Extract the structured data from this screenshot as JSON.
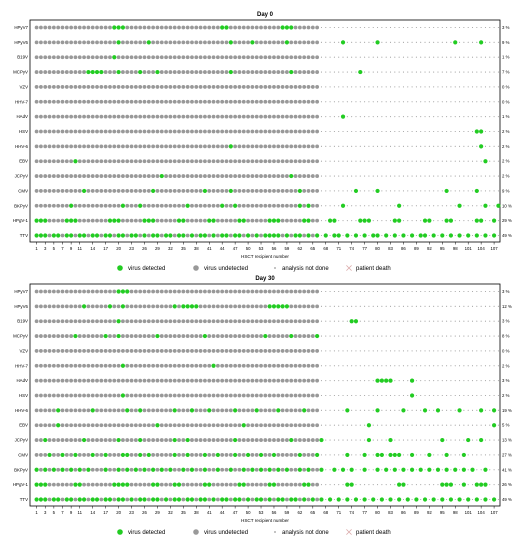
{
  "chart_data": [
    {
      "type": "scatter",
      "title": "Day 0",
      "xlabel": "HSCT recipient number",
      "ylabel": "",
      "x_ticks": [
        1,
        3,
        5,
        7,
        9,
        11,
        14,
        17,
        20,
        23,
        26,
        29,
        32,
        35,
        38,
        41,
        44,
        47,
        50,
        53,
        56,
        59,
        62,
        65,
        68,
        71,
        74,
        77,
        80,
        83,
        86,
        89,
        92,
        95,
        98,
        101,
        104,
        107
      ],
      "last_analyzed_recipient": 66,
      "grid": false,
      "legend_position": "bottom",
      "series": [
        {
          "name": "HPyV7",
          "detected": [
            19,
            20,
            21,
            44,
            45,
            58,
            59,
            60
          ],
          "percent": "3 %"
        },
        {
          "name": "HPyV6",
          "detected": [
            20,
            27,
            46,
            51,
            59,
            72,
            80,
            98,
            104
          ],
          "percent": "9 %"
        },
        {
          "name": "B19V",
          "detected": [
            19
          ],
          "percent": "1 %"
        },
        {
          "name": "MCPyV",
          "detected": [
            13,
            14,
            15,
            16,
            20,
            25,
            29,
            46,
            60,
            76
          ],
          "percent": "7 %"
        },
        {
          "name": "VZV",
          "detected": [],
          "percent": "0 %"
        },
        {
          "name": "HHV-7",
          "detected": [],
          "percent": "0 %"
        },
        {
          "name": "HAdV",
          "detected": [
            72
          ],
          "percent": "1 %"
        },
        {
          "name": "HSV",
          "detected": [
            103,
            104
          ],
          "percent": "2 %"
        },
        {
          "name": "HHV-6",
          "detected": [
            46,
            104
          ],
          "percent": "2 %"
        },
        {
          "name": "EBV",
          "detected": [
            10,
            105
          ],
          "percent": "2 %"
        },
        {
          "name": "JCPyV",
          "detected": [
            30,
            60
          ],
          "percent": "2 %"
        },
        {
          "name": "CMV",
          "detected": [
            12,
            28,
            40,
            46,
            62,
            75,
            80,
            96,
            103
          ],
          "percent": "9 %"
        },
        {
          "name": "BKPyV",
          "detected": [
            9,
            21,
            25,
            36,
            44,
            47,
            62,
            64,
            72,
            85,
            99,
            105,
            108
          ],
          "percent": "10 %"
        },
        {
          "name": "HPgV-1",
          "detected": [
            1,
            2,
            3,
            8,
            9,
            10,
            18,
            19,
            20,
            26,
            27,
            28,
            34,
            35,
            41,
            42,
            48,
            49,
            55,
            56,
            57,
            63,
            64,
            69,
            70,
            76,
            77,
            78,
            84,
            85,
            91,
            92,
            96,
            97,
            103,
            104,
            107
          ],
          "percent": "29 %"
        },
        {
          "name": "TTV",
          "detected": [
            1,
            2,
            3,
            5,
            6,
            8,
            9,
            11,
            12,
            14,
            15,
            17,
            18,
            20,
            21,
            23,
            24,
            26,
            28,
            29,
            31,
            32,
            34,
            35,
            37,
            39,
            40,
            42,
            44,
            45,
            47,
            48,
            50,
            52,
            54,
            55,
            56,
            57,
            59,
            61,
            62,
            64,
            66,
            68,
            70,
            71,
            73,
            75,
            77,
            79,
            80,
            82,
            84,
            86,
            88,
            90,
            91,
            93,
            95,
            97,
            99,
            101,
            103,
            105,
            107
          ],
          "percent": "49 %"
        }
      ]
    },
    {
      "type": "scatter",
      "title": "Day 30",
      "xlabel": "HSCT recipient number",
      "ylabel": "",
      "x_ticks": [
        1,
        3,
        5,
        7,
        9,
        11,
        14,
        17,
        20,
        23,
        26,
        29,
        32,
        35,
        38,
        41,
        44,
        47,
        50,
        53,
        56,
        59,
        62,
        65,
        68,
        71,
        74,
        77,
        80,
        83,
        86,
        89,
        92,
        95,
        98,
        101,
        104,
        107
      ],
      "last_analyzed_recipient": 66,
      "grid": false,
      "legend_position": "bottom",
      "series": [
        {
          "name": "HPyV7",
          "detected": [
            20,
            21,
            22
          ],
          "percent": "3 %"
        },
        {
          "name": "HPyV6",
          "detected": [
            12,
            18,
            21,
            33,
            35,
            36,
            37,
            38,
            55,
            56,
            57,
            58,
            59
          ],
          "percent": "12 %"
        },
        {
          "name": "B19V",
          "detected": [
            20,
            74,
            75
          ],
          "percent": "3 %"
        },
        {
          "name": "MCPyV",
          "detected": [
            10,
            17,
            20,
            29,
            40,
            54,
            60,
            66
          ],
          "percent": "8 %"
        },
        {
          "name": "VZV",
          "detected": [],
          "percent": "0 %"
        },
        {
          "name": "HHV-7",
          "detected": [
            21,
            42
          ],
          "percent": "2 %"
        },
        {
          "name": "HAdV",
          "detected": [
            80,
            81,
            82,
            83,
            88
          ],
          "percent": "3 %"
        },
        {
          "name": "HSV",
          "detected": [
            21,
            88
          ],
          "percent": "2 %"
        },
        {
          "name": "HHV-6",
          "detected": [
            6,
            14,
            22,
            25,
            33,
            37,
            41,
            47,
            52,
            57,
            63,
            73,
            80,
            86,
            91,
            94,
            99,
            104,
            107
          ],
          "percent": "19 %"
        },
        {
          "name": "EBV",
          "detected": [
            6,
            29,
            49,
            78,
            107
          ],
          "percent": "5 %"
        },
        {
          "name": "JCPyV",
          "detected": [
            3,
            12,
            20,
            25,
            33,
            36,
            47,
            60,
            67,
            78,
            83,
            95,
            101,
            104
          ],
          "percent": "13 %"
        },
        {
          "name": "CMV",
          "detected": [
            4,
            7,
            10,
            14,
            17,
            21,
            22,
            25,
            27,
            33,
            36,
            40,
            43,
            47,
            50,
            53,
            56,
            62,
            66,
            73,
            77,
            80,
            81,
            83,
            84,
            85,
            88,
            92,
            96,
            100
          ],
          "percent": "27 %"
        },
        {
          "name": "BKPyV",
          "detected": [
            1,
            3,
            5,
            7,
            9,
            11,
            13,
            17,
            20,
            22,
            24,
            26,
            28,
            30,
            32,
            35,
            37,
            40,
            43,
            46,
            49,
            51,
            53,
            55,
            57,
            59,
            62,
            64,
            67,
            70,
            72,
            74,
            77,
            80,
            82,
            84,
            86,
            88,
            90,
            92,
            94,
            96,
            98,
            100,
            102,
            105
          ],
          "percent": "41 %"
        },
        {
          "name": "HPgV-1",
          "detected": [
            1,
            2,
            3,
            10,
            11,
            19,
            20,
            21,
            22,
            28,
            29,
            33,
            34,
            40,
            41,
            48,
            49,
            55,
            56,
            63,
            64,
            73,
            74,
            85,
            86,
            95,
            96,
            97,
            100,
            103,
            104,
            105
          ],
          "percent": "26 %"
        },
        {
          "name": "TTV",
          "detected": [
            1,
            2,
            3,
            5,
            6,
            8,
            9,
            11,
            12,
            14,
            15,
            17,
            18,
            20,
            21,
            23,
            25,
            26,
            28,
            29,
            31,
            33,
            34,
            36,
            37,
            39,
            40,
            42,
            44,
            45,
            47,
            48,
            50,
            52,
            53,
            55,
            57,
            58,
            60,
            61,
            63,
            65,
            67,
            69,
            71,
            73,
            75,
            77,
            79,
            81,
            83,
            85,
            87,
            89,
            91,
            93,
            95,
            97,
            99,
            101,
            103,
            105,
            107
          ],
          "percent": "49 %"
        }
      ]
    }
  ],
  "legend": {
    "detected": "virus detected",
    "undetected": "virus undetected",
    "not_done": "analysis not done",
    "death": "patient death"
  },
  "colors": {
    "detected": "#22cc22",
    "undetected": "#999999",
    "not_done": "#999999",
    "death": "#d9a8a8",
    "frame": "#000000"
  }
}
